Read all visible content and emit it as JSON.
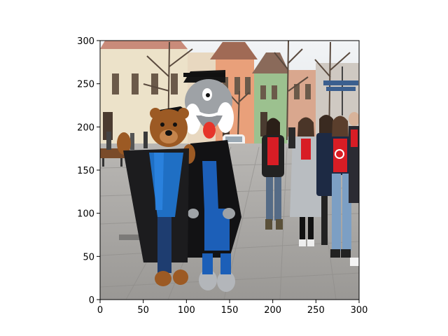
{
  "axes": {
    "xlim": [
      0,
      300
    ],
    "ylim": [
      0,
      300
    ],
    "x_ticks": [
      "0",
      "50",
      "100",
      "150",
      "200",
      "250",
      "300"
    ],
    "y_ticks": [
      "0",
      "50",
      "100",
      "150",
      "200",
      "250",
      "300"
    ]
  },
  "image": {
    "subject": "two costumed mascots in graduation gowns posing with a group of students in red shirts on a town square",
    "colors": {
      "sky": "#e9ecef",
      "pavement": "#a7a5a3",
      "bear_fur": "#9c5a24",
      "gown": "#1c1c1e",
      "stole_blue": "#1f6fc4",
      "wolf_fur": "#9ea2a6",
      "red_shirt": "#d81d25"
    }
  }
}
